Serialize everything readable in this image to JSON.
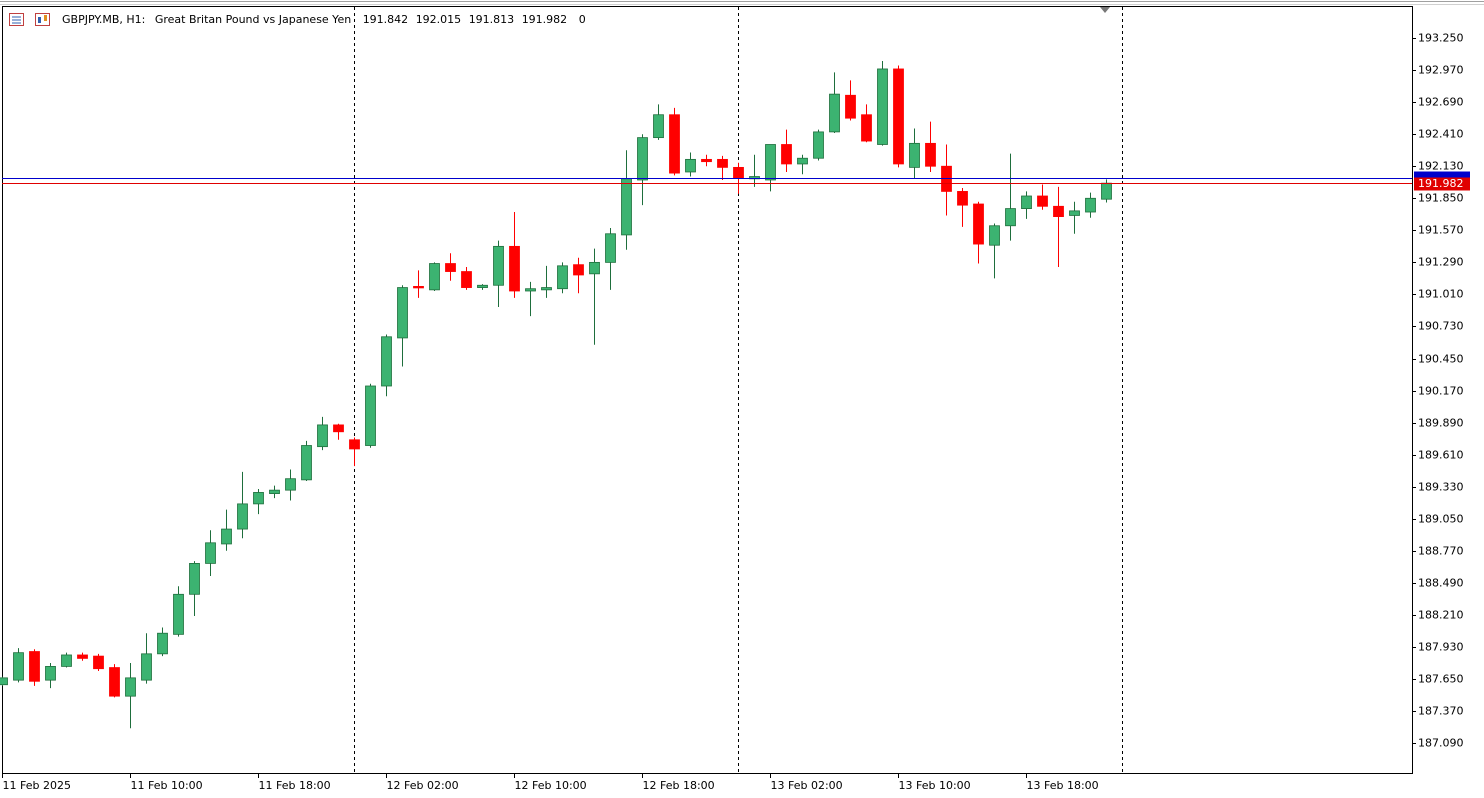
{
  "chart_data": {
    "type": "candlestick",
    "symbol": "GBPJPY.MB, H1:",
    "description": "Great Britan Pound vs Japanese Yen",
    "volume": 0,
    "categories": [
      "11 Feb 2025",
      null,
      null,
      null,
      null,
      null,
      null,
      null,
      "11 Feb 10:00",
      null,
      null,
      null,
      null,
      null,
      null,
      null,
      "11 Feb 18:00",
      null,
      null,
      null,
      null,
      null,
      null,
      null,
      "12 Feb 02:00",
      null,
      null,
      null,
      null,
      null,
      null,
      null,
      "12 Feb 10:00",
      null,
      null,
      null,
      null,
      null,
      null,
      null,
      "12 Feb 18:00",
      null,
      null,
      null,
      null,
      null,
      null,
      null,
      "13 Feb 02:00",
      null,
      null,
      null,
      null,
      null,
      null,
      null,
      "13 Feb 10:00",
      null,
      null,
      null,
      null,
      null,
      null,
      null,
      "13 Feb 18:00",
      null,
      null,
      null,
      null,
      null
    ],
    "open": [
      187.6,
      187.64,
      187.89,
      187.64,
      187.76,
      187.86,
      187.85,
      187.75,
      187.5,
      187.64,
      187.87,
      188.04,
      188.39,
      188.66,
      188.83,
      188.96,
      189.18,
      189.27,
      189.3,
      189.39,
      189.68,
      189.87,
      189.74,
      189.69,
      190.21,
      190.63,
      191.08,
      191.05,
      191.28,
      191.21,
      191.07,
      191.09,
      191.43,
      191.04,
      191.05,
      191.06,
      191.27,
      191.19,
      191.29,
      191.53,
      192.01,
      192.38,
      192.58,
      192.08,
      192.19,
      192.19,
      192.12,
      192.02,
      192.01,
      192.32,
      192.15,
      192.2,
      192.43,
      192.75,
      192.58,
      192.32,
      192.98,
      192.12,
      192.33,
      192.13,
      191.91,
      191.8,
      191.44,
      191.61,
      191.76,
      191.87,
      191.78,
      191.7,
      191.73,
      191.842
    ],
    "high": [
      187.67,
      187.92,
      187.91,
      187.79,
      187.88,
      187.88,
      187.87,
      187.78,
      187.79,
      188.05,
      188.1,
      188.46,
      188.68,
      188.95,
      189.13,
      189.46,
      189.31,
      189.34,
      189.48,
      189.73,
      189.94,
      189.88,
      189.76,
      190.23,
      190.66,
      191.09,
      191.22,
      191.29,
      191.37,
      191.25,
      191.1,
      191.48,
      191.73,
      191.12,
      191.26,
      191.29,
      191.33,
      191.41,
      191.59,
      192.27,
      192.41,
      192.67,
      192.64,
      192.25,
      192.23,
      192.22,
      192.16,
      192.23,
      192.32,
      192.45,
      192.23,
      192.45,
      192.95,
      192.88,
      192.67,
      193.05,
      193.01,
      192.46,
      192.52,
      192.32,
      191.94,
      191.82,
      191.63,
      192.24,
      191.91,
      191.97,
      191.95,
      191.82,
      191.9,
      192.015
    ],
    "low": [
      187.59,
      187.62,
      187.59,
      187.57,
      187.75,
      187.81,
      187.72,
      187.49,
      187.22,
      187.61,
      187.85,
      188.02,
      188.2,
      188.55,
      188.77,
      188.88,
      189.09,
      189.23,
      189.21,
      189.38,
      189.65,
      189.74,
      189.51,
      189.67,
      190.12,
      190.38,
      190.98,
      191.04,
      191.13,
      191.05,
      191.05,
      190.9,
      190.98,
      190.82,
      190.98,
      191.02,
      191.02,
      190.57,
      191.05,
      191.4,
      191.79,
      192.36,
      192.05,
      192.04,
      192.13,
      192.01,
      191.89,
      191.95,
      191.91,
      192.08,
      192.06,
      192.18,
      192.42,
      192.53,
      192.34,
      192.31,
      192.12,
      192.02,
      192.08,
      191.7,
      191.6,
      191.28,
      191.15,
      191.48,
      191.67,
      191.75,
      191.25,
      191.54,
      191.68,
      191.813
    ],
    "close": [
      187.66,
      187.88,
      187.63,
      187.76,
      187.86,
      187.83,
      187.74,
      187.5,
      187.66,
      187.87,
      188.05,
      188.39,
      188.66,
      188.84,
      188.96,
      189.18,
      189.28,
      189.3,
      189.4,
      189.69,
      189.87,
      189.81,
      189.66,
      190.21,
      190.64,
      191.07,
      191.07,
      191.28,
      191.21,
      191.07,
      191.09,
      191.43,
      191.04,
      191.06,
      191.07,
      191.26,
      191.18,
      191.29,
      191.54,
      192.02,
      192.38,
      192.58,
      192.07,
      192.19,
      192.17,
      192.12,
      192.03,
      192.04,
      192.32,
      192.15,
      192.2,
      192.43,
      192.76,
      192.55,
      192.35,
      192.98,
      192.15,
      192.33,
      192.13,
      191.91,
      191.79,
      191.45,
      191.61,
      191.76,
      191.87,
      191.78,
      191.69,
      191.74,
      191.85,
      191.982
    ],
    "up_color": "#3cb371",
    "down_color": "#ff0000",
    "bid": 191.982,
    "bid_label": "191.982",
    "bid_color": "#e00000",
    "ask": 192.027,
    "ask_color": "#0000cc",
    "ylim": [
      186.82,
      193.53
    ],
    "yticks": [
      {
        "value": 193.25,
        "label": "193.250"
      },
      {
        "value": 192.97,
        "label": "192.970"
      },
      {
        "value": 192.69,
        "label": "192.690"
      },
      {
        "value": 192.41,
        "label": "192.410"
      },
      {
        "value": 192.13,
        "label": "192.130"
      },
      {
        "value": 191.85,
        "label": "191.850"
      },
      {
        "value": 191.57,
        "label": "191.570"
      },
      {
        "value": 191.29,
        "label": "191.290"
      },
      {
        "value": 191.01,
        "label": "191.010"
      },
      {
        "value": 190.73,
        "label": "190.730"
      },
      {
        "value": 190.45,
        "label": "190.450"
      },
      {
        "value": 190.17,
        "label": "190.170"
      },
      {
        "value": 189.89,
        "label": "189.890"
      },
      {
        "value": 189.61,
        "label": "189.610"
      },
      {
        "value": 189.33,
        "label": "189.330"
      },
      {
        "value": 189.05,
        "label": "189.050"
      },
      {
        "value": 188.77,
        "label": "188.770"
      },
      {
        "value": 188.49,
        "label": "188.490"
      },
      {
        "value": 188.21,
        "label": "188.210"
      },
      {
        "value": 187.93,
        "label": "187.930"
      },
      {
        "value": 187.65,
        "label": "187.650"
      },
      {
        "value": 187.37,
        "label": "187.370"
      },
      {
        "value": 187.09,
        "label": "187.090"
      }
    ]
  }
}
